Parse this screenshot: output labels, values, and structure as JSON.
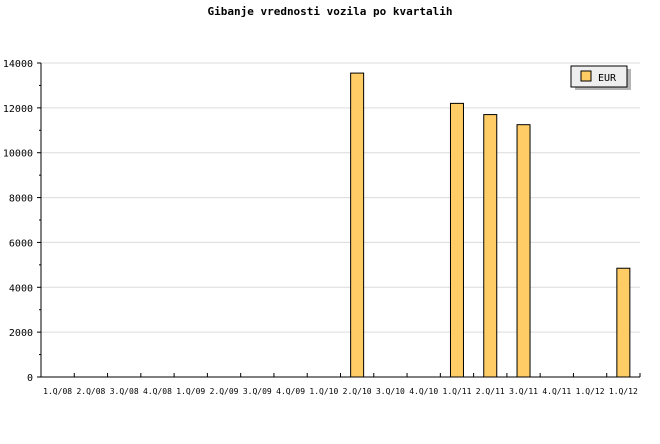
{
  "chart_data": {
    "type": "bar",
    "title": "Gibanje vrednosti vozila po kvartalih",
    "xlabel": "",
    "ylabel": "",
    "ylim": [
      0,
      14000
    ],
    "yticks": [
      0,
      2000,
      4000,
      6000,
      8000,
      10000,
      12000,
      14000
    ],
    "grid": true,
    "legend_placement": "top-right",
    "categories": [
      "1.Q/08",
      "2.Q/08",
      "3.Q/08",
      "4.Q/08",
      "1.Q/09",
      "2.Q/09",
      "3.Q/09",
      "4.Q/09",
      "1.Q/10",
      "2.Q/10",
      "3.Q/10",
      "4.Q/10",
      "1.Q/11",
      "2.Q/11",
      "3.Q/11",
      "4.Q/11",
      "1.Q/12",
      "1.Q/12"
    ],
    "series": [
      {
        "name": "EUR",
        "color": "#ffcc66",
        "values": [
          0,
          0,
          0,
          0,
          0,
          0,
          0,
          0,
          0,
          13550,
          0,
          0,
          12200,
          11700,
          11250,
          0,
          0,
          4850
        ]
      }
    ]
  }
}
